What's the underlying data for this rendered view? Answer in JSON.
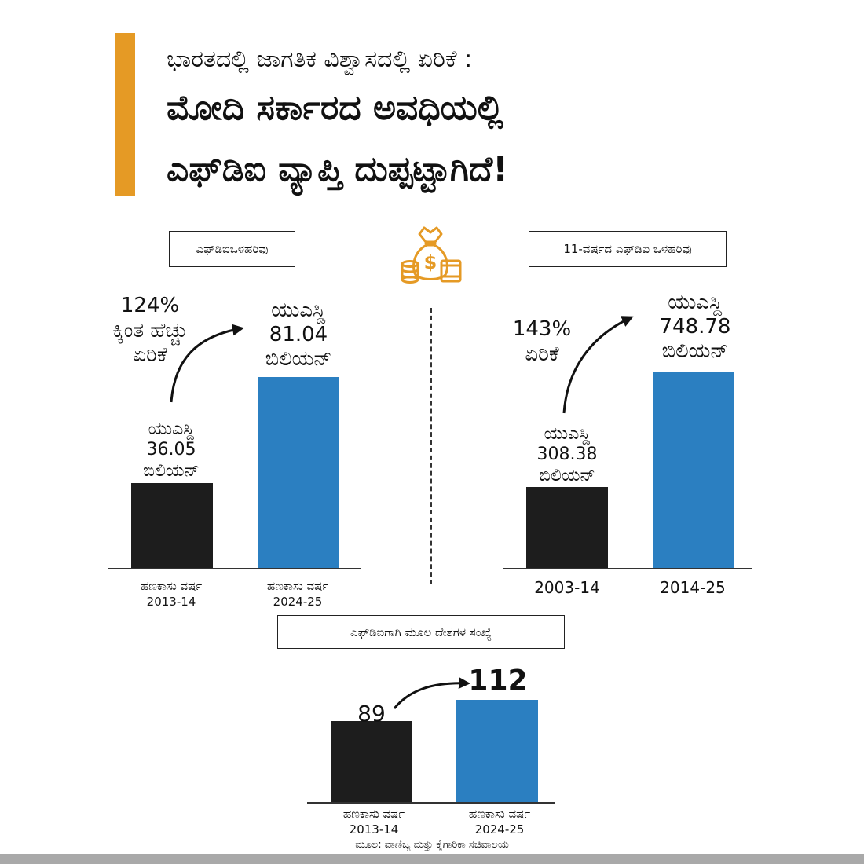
{
  "header": {
    "subtitle": "ಭಾರತದಲ್ಲಿ ಜಾಗತಿಕ ವಿಶ್ವಾಸದಲ್ಲಿ ಏರಿಕೆ :",
    "title_line1": "ಮೋದಿ ಸರ್ಕಾರದ ಅವಧಿಯಲ್ಲಿ",
    "title_line2": "ಎಫ್‌ಡಿಐ ವ್ಯಾಪ್ತಿ ದುಪ್ಪಟ್ಟಾಗಿದೆ!",
    "accent_color": "#e59a25"
  },
  "icon": "money-bag-coins-icon",
  "colors": {
    "dark_bar": "#1d1d1d",
    "blue_bar": "#2b7fc1"
  },
  "chart_data": [
    {
      "type": "bar",
      "title": "ಎಫ್‌ಡಿಐಒಳಹರಿವು",
      "categories": [
        "ಹಣಕಾಸು ವರ್ಷ 2013-14",
        "ಹಣಕಾಸು ವರ್ಷ 2024-25"
      ],
      "category_lines": [
        [
          "ಹಣಕಾಸು ವರ್ಷ",
          "2013-14"
        ],
        [
          "ಹಣಕಾಸು ವರ್ಷ",
          "2024-25"
        ]
      ],
      "values": [
        36.05,
        81.04
      ],
      "value_labels": [
        [
          "ಯುಎಸ್ಡಿ",
          "36.05",
          "ಬಿಲಿಯನ್"
        ],
        [
          "ಯುಎಸ್ಡಿ",
          "81.04",
          "ಬಿಲಿಯನ್"
        ]
      ],
      "annotation": [
        "124%",
        "ಕ್ಕಿಂತ ಹೆಚ್ಚು",
        "ಏರಿಕೆ"
      ],
      "ylim": [
        0,
        100
      ]
    },
    {
      "type": "bar",
      "title": "11-ವರ್ಷದ ಎಫ್‌ಡಿಐ ಒಳಹರಿವು",
      "categories": [
        "2003-14",
        "2014-25"
      ],
      "category_lines": [
        [
          "2003-14"
        ],
        [
          "2014-25"
        ]
      ],
      "values": [
        308.38,
        748.78
      ],
      "value_labels": [
        [
          "ಯುಎಸ್ಡಿ",
          "308.38",
          "ಬಿಲಿಯನ್"
        ],
        [
          "ಯುಎಸ್ಡಿ",
          "748.78",
          "ಬಿಲಿಯನ್"
        ]
      ],
      "annotation": [
        "143%",
        "ಏರಿಕೆ"
      ],
      "ylim": [
        0,
        900
      ]
    },
    {
      "type": "bar",
      "title": "ಎಫ್‌ಡಿಐಗಾಗಿ  ಮೂಲ ದೇಶಗಳ ಸಂಖ್ಯೆ",
      "categories": [
        "ಹಣಕಾಸು ವರ್ಷ 2013-14",
        "ಹಣಕಾಸು ವರ್ಷ 2024-25"
      ],
      "category_lines": [
        [
          "ಹಣಕಾಸು ವರ್ಷ",
          "2013-14"
        ],
        [
          "ಹಣಕಾಸು ವರ್ಷ",
          "2024-25"
        ]
      ],
      "values": [
        89,
        112
      ],
      "value_labels": [
        [
          "89"
        ],
        [
          "112"
        ]
      ],
      "ylim": [
        0,
        143
      ]
    }
  ],
  "source": "ಮೂಲ: ವಾಣಿಜ್ಯ ಮತ್ತು ಕೈಗಾರಿಕಾ ಸಚಿವಾಲಯ"
}
